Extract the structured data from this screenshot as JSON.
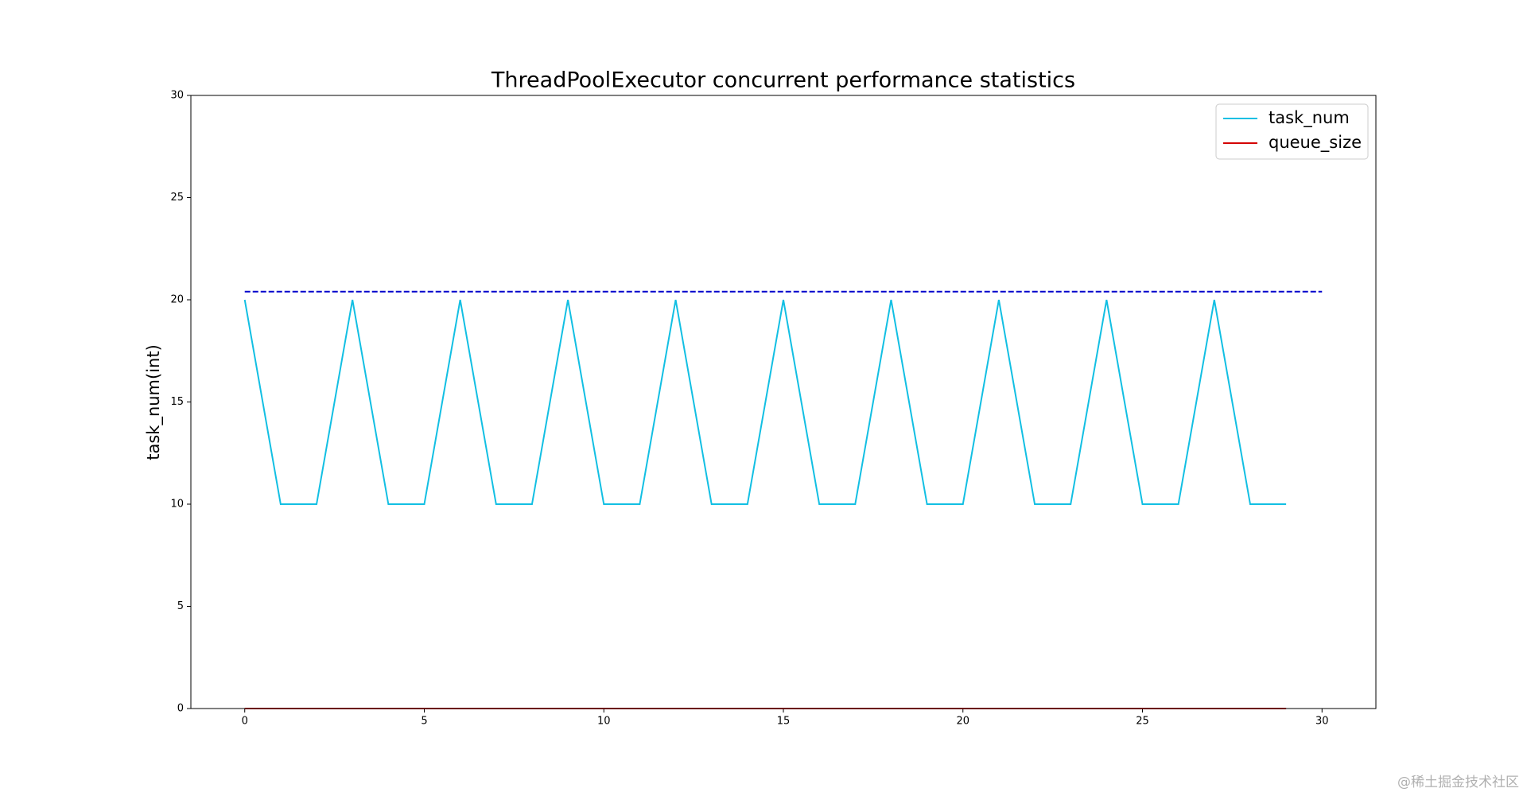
{
  "chart_data": {
    "type": "line",
    "title": "ThreadPoolExecutor concurrent performance statistics",
    "ylabel": "task_num(int)",
    "x": [
      0,
      1,
      2,
      3,
      4,
      5,
      6,
      7,
      8,
      9,
      10,
      11,
      12,
      13,
      14,
      15,
      16,
      17,
      18,
      19,
      20,
      21,
      22,
      23,
      24,
      25,
      26,
      27,
      28,
      29
    ],
    "series": [
      {
        "name": "task_num",
        "color": "#12bfe3",
        "values": [
          20,
          10,
          10,
          20,
          10,
          10,
          20,
          10,
          10,
          20,
          10,
          10,
          20,
          10,
          10,
          20,
          10,
          10,
          20,
          10,
          10,
          20,
          10,
          10,
          20,
          10,
          10,
          20,
          10,
          10
        ]
      },
      {
        "name": "queue_size",
        "color": "#d40000",
        "values": [
          0,
          0,
          0,
          0,
          0,
          0,
          0,
          0,
          0,
          0,
          0,
          0,
          0,
          0,
          0,
          0,
          0,
          0,
          0,
          0,
          0,
          0,
          0,
          0,
          0,
          0,
          0,
          0,
          0,
          0
        ]
      }
    ],
    "hline": {
      "value": 20.4,
      "from": 0,
      "to": 30,
      "color": "#0000cc",
      "dashed": true
    },
    "xlim": [
      -1.5,
      31.5
    ],
    "xticks": [
      0,
      5,
      10,
      15,
      20,
      25,
      30
    ],
    "ylim": [
      0,
      30
    ],
    "yticks": [
      0,
      5,
      10,
      15,
      20,
      25,
      30
    ],
    "grid": false,
    "legend": "upper right",
    "watermark": "@稀土掘金技术社区"
  }
}
